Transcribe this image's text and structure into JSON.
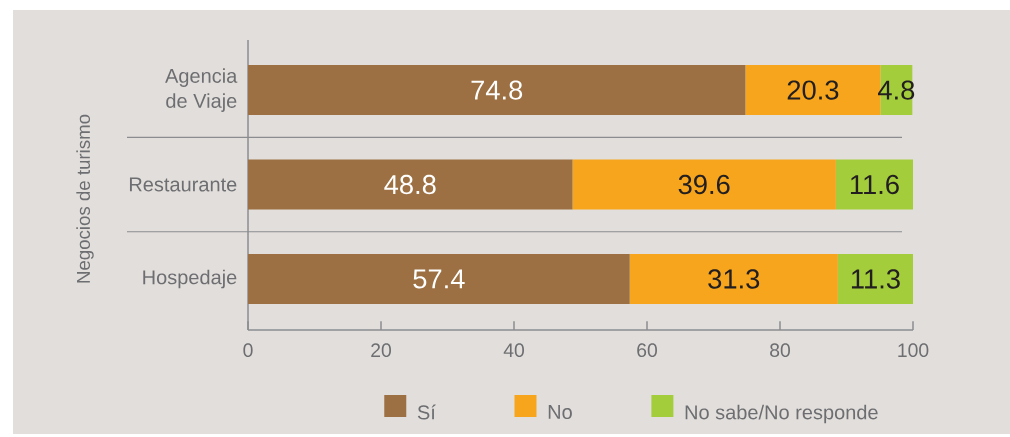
{
  "chart_data": {
    "type": "bar",
    "orientation": "horizontal",
    "stacked": true,
    "ylabel": "Negocios de turismo",
    "categories": [
      "Agencia de Viaje",
      "Restaurante",
      "Hospedaje"
    ],
    "series": [
      {
        "name": "Sí",
        "color": "#9c7043",
        "values": [
          74.8,
          48.8,
          57.4
        ]
      },
      {
        "name": "No",
        "color": "#f6a51c",
        "values": [
          20.3,
          39.6,
          31.3
        ]
      },
      {
        "name": "No sabe/No responde",
        "color": "#a3cd3b",
        "values": [
          4.8,
          11.6,
          11.3
        ]
      }
    ],
    "xlim": [
      0,
      100
    ],
    "xticks": [
      0,
      20,
      40,
      60,
      80,
      100
    ],
    "data_labels": true,
    "grid": "y",
    "legend": "bottom"
  }
}
